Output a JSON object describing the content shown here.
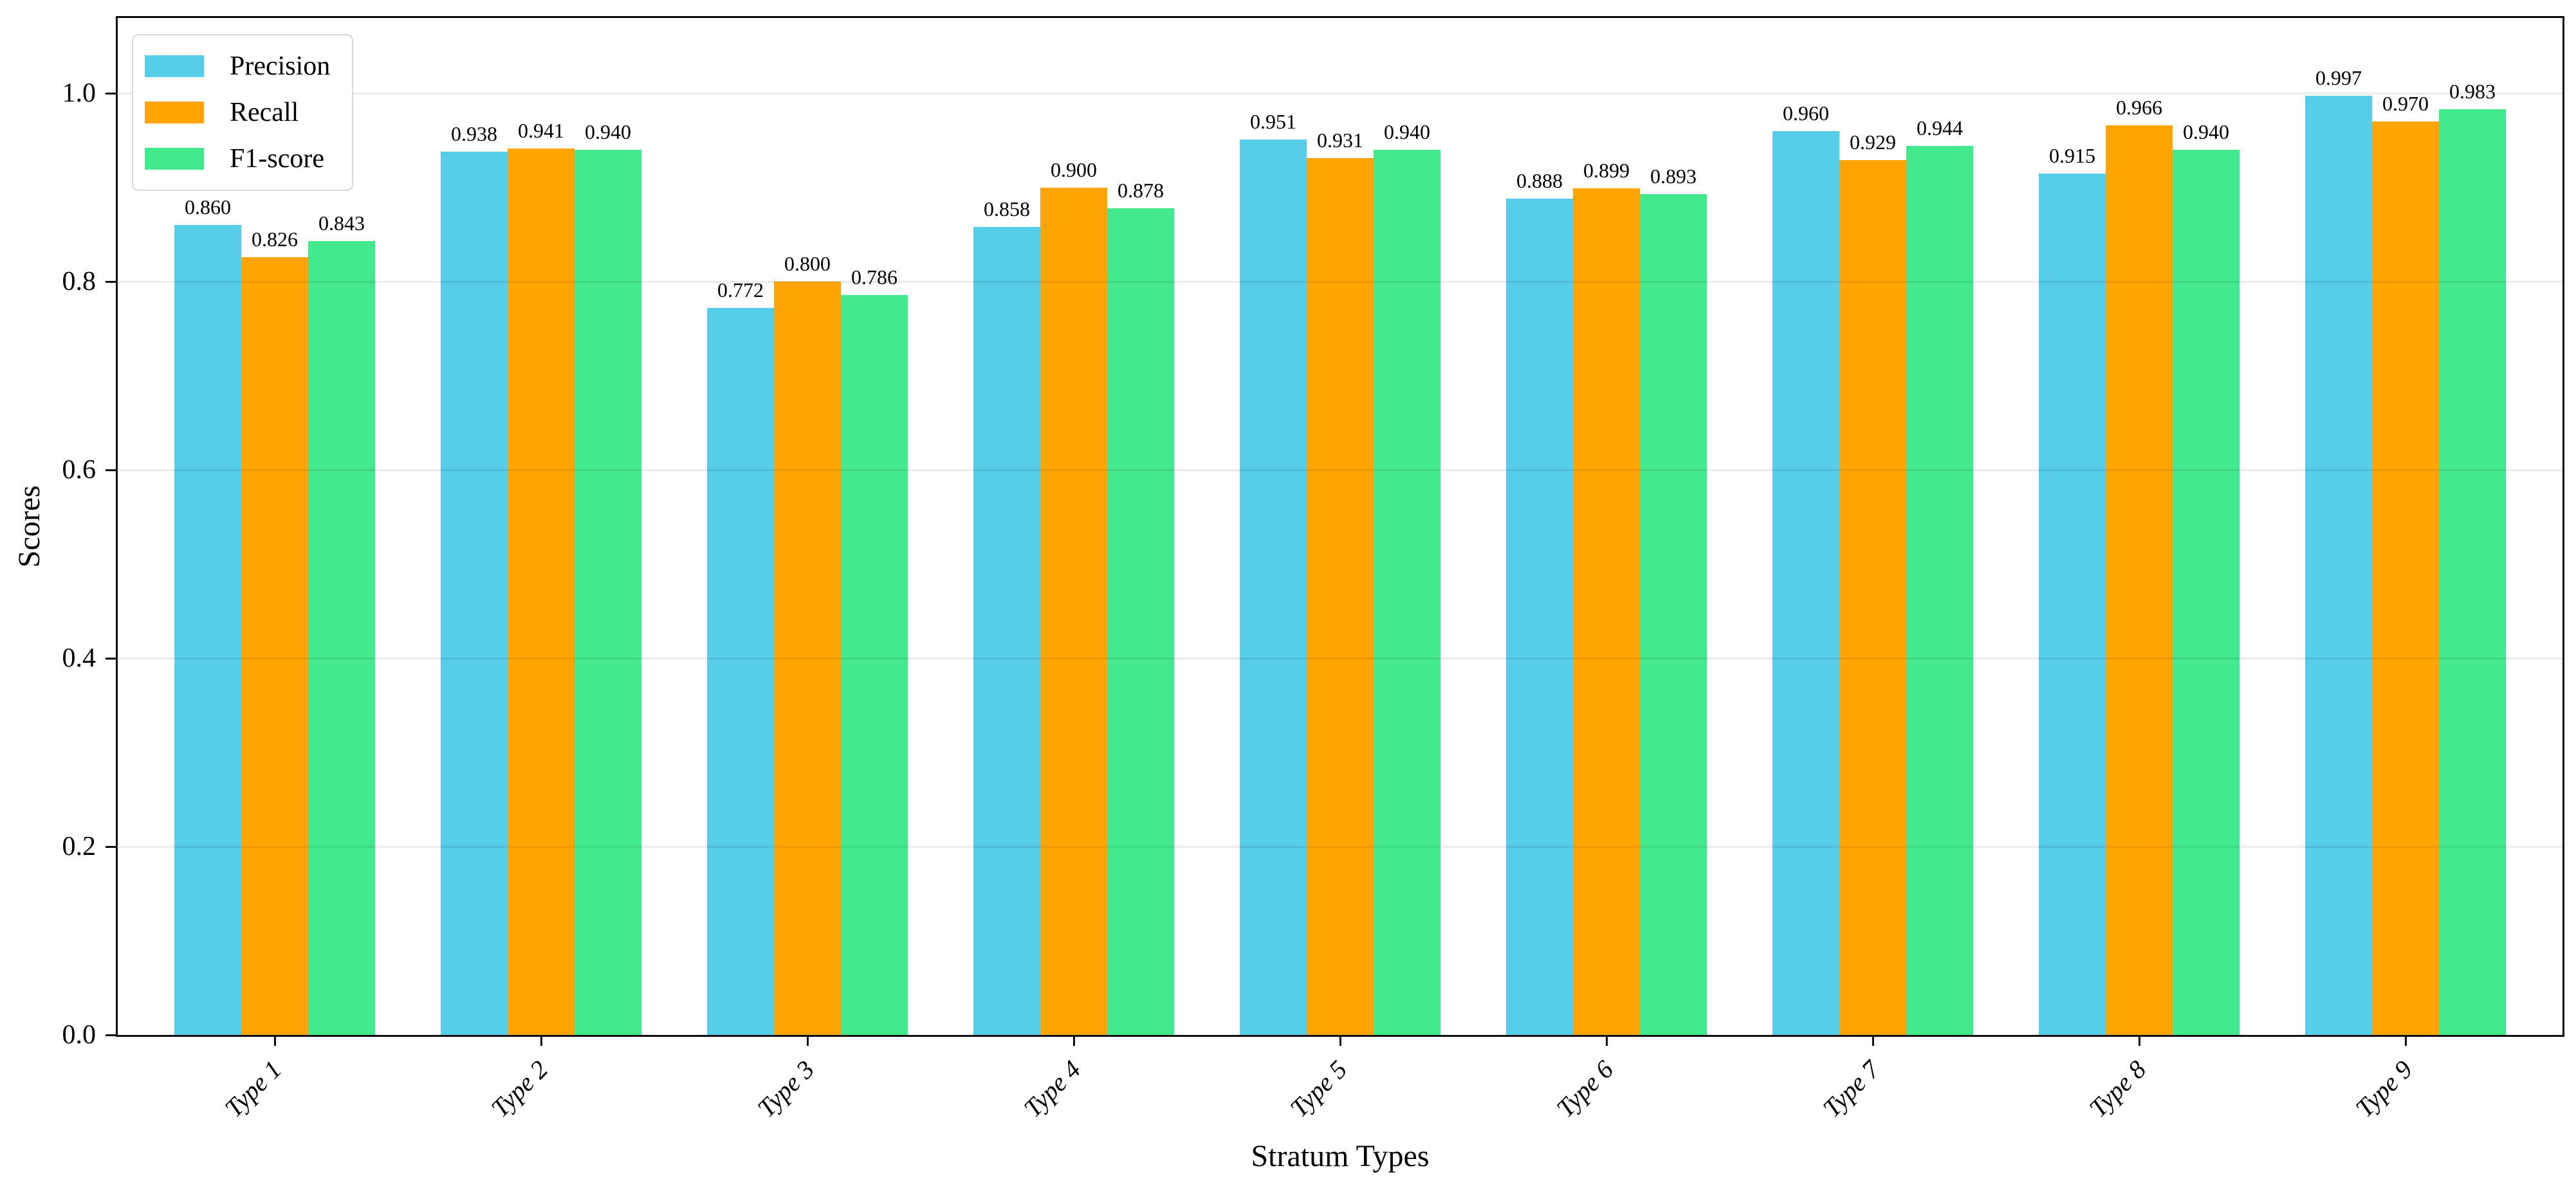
{
  "chart_data": {
    "type": "bar",
    "title": "",
    "xlabel": "Stratum Types",
    "ylabel": "Scores",
    "categories": [
      "Type 1",
      "Type 2",
      "Type 3",
      "Type 4",
      "Type 5",
      "Type 6",
      "Type 7",
      "Type 8",
      "Type 9"
    ],
    "series": [
      {
        "name": "Precision",
        "color": "#56CDE9",
        "values": [
          0.86,
          0.938,
          0.772,
          0.858,
          0.951,
          0.888,
          0.96,
          0.915,
          0.997
        ]
      },
      {
        "name": "Recall",
        "color": "#FFA503",
        "values": [
          0.826,
          0.941,
          0.8,
          0.9,
          0.931,
          0.899,
          0.929,
          0.966,
          0.97
        ]
      },
      {
        "name": "F1-score",
        "color": "#43EA8D",
        "values": [
          0.843,
          0.94,
          0.786,
          0.878,
          0.94,
          0.893,
          0.944,
          0.94,
          0.983
        ]
      }
    ],
    "ylim": [
      0.0,
      1.08
    ],
    "yticks": [
      0.0,
      0.2,
      0.4,
      0.6,
      0.8,
      1.0
    ],
    "grid": true,
    "legend_position": "upper left",
    "value_label_decimals": 3,
    "bar_value_labels_shown": true
  },
  "colors": {
    "axis": "#0d0d0d",
    "gridline": "#ebebeb",
    "legend_border": "#d8d8d8",
    "background": "#ffffff",
    "text": "#000000"
  }
}
